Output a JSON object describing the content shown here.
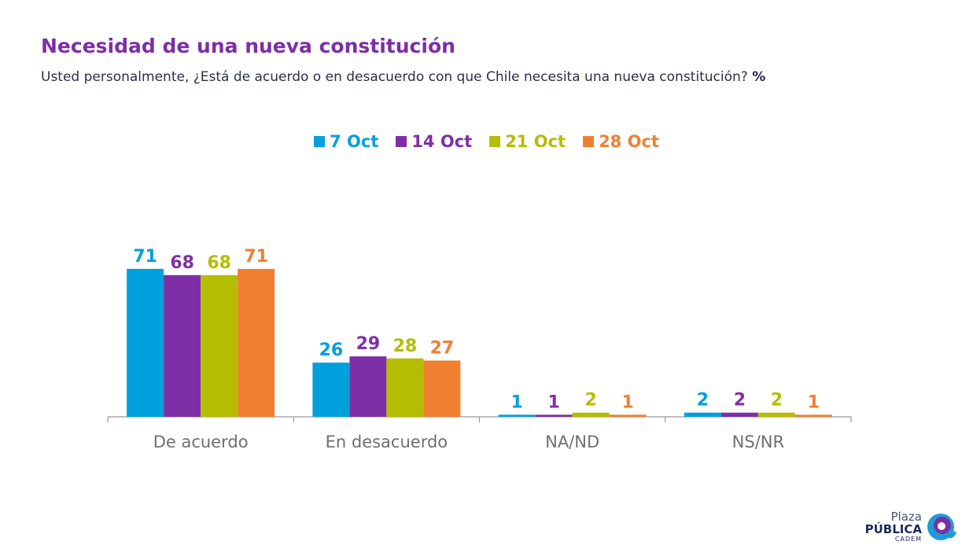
{
  "header": {
    "title": "Necesidad de una nueva constitución",
    "subtitle": "Usted personalmente, ¿Está de acuerdo o en desacuerdo con que Chile necesita una nueva constitución?",
    "subtitle_unit": "%"
  },
  "logo": {
    "line1": "Plaza",
    "line2": "PÚBLICA",
    "line3": "CADEM"
  },
  "chart_data": {
    "type": "bar",
    "title": "Necesidad de una nueva constitución",
    "xlabel": "",
    "ylabel": "",
    "ylim": [
      0,
      80
    ],
    "grid": false,
    "legend_position": "top-center",
    "categories": [
      "De acuerdo",
      "En desacuerdo",
      "NA/ND",
      "NS/NR"
    ],
    "series": [
      {
        "name": "7 Oct",
        "color": "#00a0dc",
        "values": [
          71,
          26,
          1,
          2
        ]
      },
      {
        "name": "14 Oct",
        "color": "#7f2fa6",
        "values": [
          68,
          29,
          1,
          2
        ]
      },
      {
        "name": "21 Oct",
        "color": "#b5bd00",
        "values": [
          68,
          28,
          2,
          2
        ]
      },
      {
        "name": "28 Oct",
        "color": "#f07f32",
        "values": [
          71,
          27,
          1,
          1
        ]
      }
    ]
  }
}
